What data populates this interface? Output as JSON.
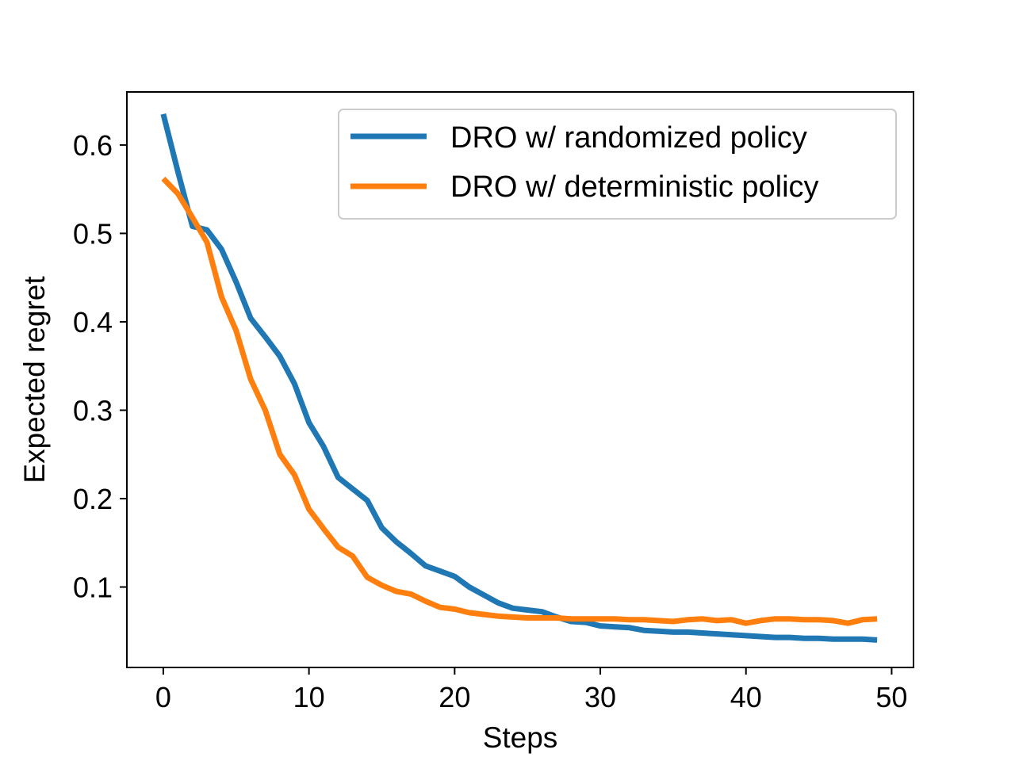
{
  "chart_data": {
    "type": "line",
    "title": "",
    "xlabel": "Steps",
    "ylabel": "Expected regret",
    "xlim": [
      -2.5,
      51.5
    ],
    "ylim": [
      0.009,
      0.66
    ],
    "xticks": [
      0,
      10,
      20,
      30,
      40,
      50
    ],
    "yticks": [
      0.1,
      0.2,
      0.3,
      0.4,
      0.5,
      0.6
    ],
    "grid": false,
    "legend": "upper right",
    "series": [
      {
        "name": "DRO w/ randomized policy",
        "color": "#1f77b4",
        "x": [
          0,
          1,
          2,
          3,
          4,
          5,
          6,
          7,
          8,
          9,
          10,
          11,
          12,
          13,
          14,
          15,
          16,
          17,
          18,
          19,
          20,
          21,
          22,
          23,
          24,
          25,
          26,
          27,
          28,
          29,
          30,
          31,
          32,
          33,
          34,
          35,
          36,
          37,
          38,
          39,
          40,
          41,
          42,
          43,
          44,
          45,
          46,
          47,
          48,
          49
        ],
        "values": [
          0.635,
          0.57,
          0.508,
          0.504,
          0.482,
          0.445,
          0.404,
          0.383,
          0.361,
          0.33,
          0.286,
          0.259,
          0.224,
          0.211,
          0.198,
          0.167,
          0.151,
          0.138,
          0.124,
          0.118,
          0.112,
          0.1,
          0.091,
          0.082,
          0.076,
          0.074,
          0.072,
          0.066,
          0.061,
          0.06,
          0.056,
          0.055,
          0.054,
          0.051,
          0.05,
          0.049,
          0.049,
          0.048,
          0.047,
          0.046,
          0.045,
          0.044,
          0.043,
          0.043,
          0.042,
          0.042,
          0.041,
          0.041,
          0.041,
          0.04
        ]
      },
      {
        "name": "DRO w/ deterministic policy",
        "color": "#ff7f0e",
        "x": [
          0,
          1,
          2,
          3,
          4,
          5,
          6,
          7,
          8,
          9,
          10,
          11,
          12,
          13,
          14,
          15,
          16,
          17,
          18,
          19,
          20,
          21,
          22,
          23,
          24,
          25,
          26,
          27,
          28,
          29,
          30,
          31,
          32,
          33,
          34,
          35,
          36,
          37,
          38,
          39,
          40,
          41,
          42,
          43,
          44,
          45,
          46,
          47,
          48,
          49
        ],
        "values": [
          0.562,
          0.545,
          0.518,
          0.49,
          0.428,
          0.39,
          0.335,
          0.3,
          0.25,
          0.227,
          0.188,
          0.166,
          0.145,
          0.135,
          0.111,
          0.102,
          0.095,
          0.092,
          0.084,
          0.077,
          0.075,
          0.071,
          0.069,
          0.067,
          0.066,
          0.065,
          0.065,
          0.065,
          0.064,
          0.064,
          0.064,
          0.064,
          0.063,
          0.063,
          0.062,
          0.061,
          0.063,
          0.064,
          0.062,
          0.063,
          0.059,
          0.062,
          0.064,
          0.064,
          0.063,
          0.063,
          0.062,
          0.059,
          0.063,
          0.064
        ]
      }
    ]
  }
}
